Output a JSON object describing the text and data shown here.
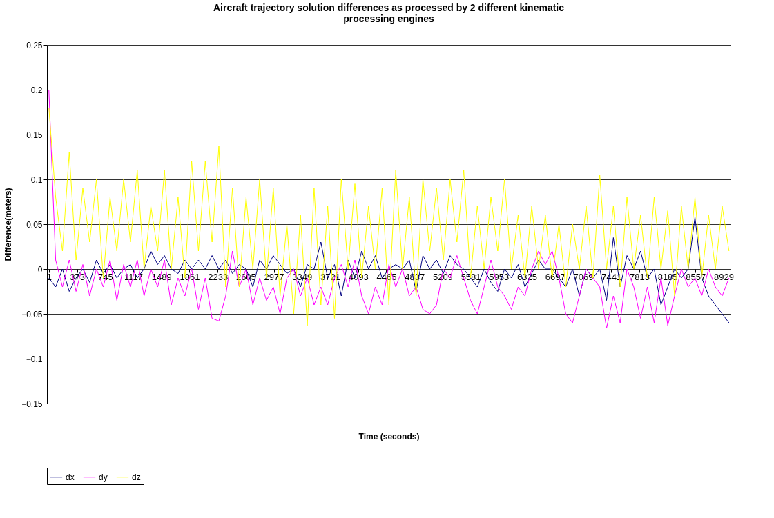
{
  "chart_data": {
    "type": "line",
    "title": "Aircraft trajectory solution differences as processed by 2 different kinematic processing engines",
    "xlabel": "Time (seconds)",
    "ylabel": "Difference(meters)",
    "x": [
      0,
      90,
      180,
      270,
      360,
      450,
      540,
      630,
      720,
      810,
      900,
      990,
      1080,
      1170,
      1260,
      1350,
      1440,
      1530,
      1620,
      1710,
      1800,
      1890,
      1980,
      2070,
      2160,
      2250,
      2340,
      2430,
      2520,
      2610,
      2700,
      2790,
      2880,
      2970,
      3060,
      3150,
      3240,
      3330,
      3420,
      3510,
      3600,
      3690,
      3780,
      3870,
      3960,
      4050,
      4140,
      4230,
      4320,
      4410,
      4500,
      4590,
      4680,
      4770,
      4860,
      4950,
      5040,
      5130,
      5220,
      5310,
      5400,
      5490,
      5580,
      5670,
      5760,
      5850,
      5940,
      6030,
      6120,
      6210,
      6300,
      6390,
      6480,
      6570,
      6660,
      6750,
      6840,
      6930,
      7020,
      7110,
      7200,
      7290,
      7380,
      7470,
      7560,
      7650,
      7740,
      7830,
      7920,
      8010,
      8100,
      8190,
      8280,
      8370,
      8460,
      8550,
      8640,
      8730,
      8820,
      8910,
      9000
    ],
    "series": [
      {
        "name": "dx",
        "color": "#000080",
        "values": [
          -0.01,
          -0.02,
          0.0,
          -0.025,
          -0.01,
          0.0,
          -0.015,
          0.01,
          -0.005,
          0.005,
          -0.01,
          0.0,
          0.005,
          -0.01,
          0.0,
          0.02,
          0.005,
          0.015,
          0.0,
          -0.005,
          0.01,
          0.0,
          0.01,
          0.0,
          0.015,
          0.0,
          0.01,
          -0.005,
          0.005,
          0.0,
          -0.02,
          0.01,
          0.0,
          0.015,
          0.005,
          -0.005,
          0.0,
          -0.02,
          0.005,
          0.0,
          0.03,
          -0.01,
          0.005,
          -0.03,
          0.01,
          -0.01,
          0.02,
          0.0,
          0.015,
          -0.01,
          0.0,
          0.005,
          0.0,
          0.01,
          -0.025,
          0.015,
          0.0,
          0.01,
          -0.005,
          0.015,
          0.005,
          0.0,
          -0.01,
          -0.02,
          0.0,
          -0.015,
          -0.025,
          0.0,
          -0.01,
          0.005,
          -0.02,
          -0.005,
          0.01,
          0.0,
          0.0,
          -0.01,
          -0.02,
          0.0,
          -0.03,
          0.0,
          -0.01,
          0.0,
          -0.035,
          0.035,
          -0.02,
          0.015,
          0.0,
          0.02,
          -0.01,
          0.0,
          -0.04,
          -0.02,
          0.0,
          -0.01,
          0.0,
          0.058,
          -0.01,
          -0.03,
          -0.04,
          -0.05,
          -0.06
        ]
      },
      {
        "name": "dy",
        "color": "#ff00ff",
        "values": [
          0.2,
          0.01,
          -0.02,
          0.01,
          -0.025,
          0.005,
          -0.03,
          0.0,
          -0.02,
          0.01,
          -0.035,
          0.005,
          -0.02,
          0.01,
          -0.03,
          0.0,
          -0.02,
          0.01,
          -0.04,
          -0.01,
          -0.03,
          0.0,
          -0.045,
          -0.01,
          -0.055,
          -0.058,
          -0.03,
          0.02,
          -0.02,
          0.0,
          -0.04,
          -0.01,
          -0.035,
          -0.02,
          -0.05,
          -0.01,
          0.0,
          -0.03,
          -0.01,
          -0.04,
          -0.02,
          -0.04,
          -0.01,
          0.005,
          -0.02,
          0.01,
          -0.03,
          -0.05,
          -0.02,
          -0.04,
          0.005,
          -0.02,
          0.0,
          -0.03,
          -0.02,
          -0.045,
          -0.05,
          -0.04,
          0.0,
          -0.01,
          0.015,
          -0.01,
          -0.035,
          -0.05,
          -0.02,
          0.01,
          -0.02,
          -0.03,
          -0.045,
          -0.02,
          -0.03,
          0.0,
          0.02,
          0.005,
          0.02,
          -0.01,
          -0.05,
          -0.06,
          -0.03,
          0.0,
          -0.01,
          -0.02,
          -0.066,
          -0.03,
          -0.06,
          0.0,
          -0.02,
          -0.055,
          -0.02,
          -0.06,
          -0.01,
          -0.063,
          -0.03,
          0.0,
          -0.02,
          -0.01,
          -0.03,
          0.0,
          -0.02,
          -0.03,
          -0.01
        ]
      },
      {
        "name": "dz",
        "color": "#ffff00",
        "values": [
          0.18,
          0.08,
          0.02,
          0.13,
          0.01,
          0.09,
          0.03,
          0.1,
          -0.01,
          0.08,
          0.02,
          0.1,
          0.03,
          0.11,
          0.0,
          0.07,
          0.02,
          0.11,
          0.0,
          0.08,
          -0.01,
          0.12,
          0.02,
          0.12,
          0.03,
          0.137,
          -0.02,
          0.09,
          -0.02,
          0.08,
          0.0,
          0.1,
          -0.01,
          0.09,
          -0.03,
          0.05,
          -0.05,
          0.06,
          -0.063,
          0.09,
          -0.04,
          0.07,
          -0.055,
          0.1,
          0.0,
          0.095,
          -0.01,
          0.07,
          0.0,
          0.09,
          -0.04,
          0.11,
          0.0,
          0.08,
          -0.03,
          0.1,
          0.02,
          0.09,
          0.01,
          0.1,
          0.03,
          0.11,
          -0.01,
          0.07,
          0.0,
          0.08,
          0.02,
          0.1,
          0.0,
          0.06,
          -0.01,
          0.07,
          0.0,
          0.06,
          -0.01,
          0.05,
          -0.02,
          0.05,
          0.0,
          0.07,
          -0.01,
          0.105,
          0.0,
          0.07,
          -0.02,
          0.08,
          0.0,
          0.06,
          -0.01,
          0.08,
          0.0,
          0.065,
          -0.03,
          0.07,
          0.0,
          0.08,
          -0.01,
          0.06,
          0.0,
          0.07,
          0.02
        ]
      }
    ],
    "xlim": [
      -25,
      9020
    ],
    "xticks": [
      1,
      373,
      745,
      1117,
      1489,
      1861,
      2233,
      2605,
      2977,
      3349,
      3721,
      4093,
      4465,
      4837,
      5209,
      5581,
      5953,
      6325,
      6697,
      7069,
      7441,
      7813,
      8185,
      8557,
      8929
    ],
    "ylim": [
      -0.15,
      0.25
    ],
    "yticks": [
      -0.15,
      -0.1,
      -0.05,
      0,
      0.05,
      0.1,
      0.15,
      0.2,
      0.25
    ],
    "grid": "y",
    "legend": "bottom",
    "marker": "none",
    "line_style": "solid"
  }
}
